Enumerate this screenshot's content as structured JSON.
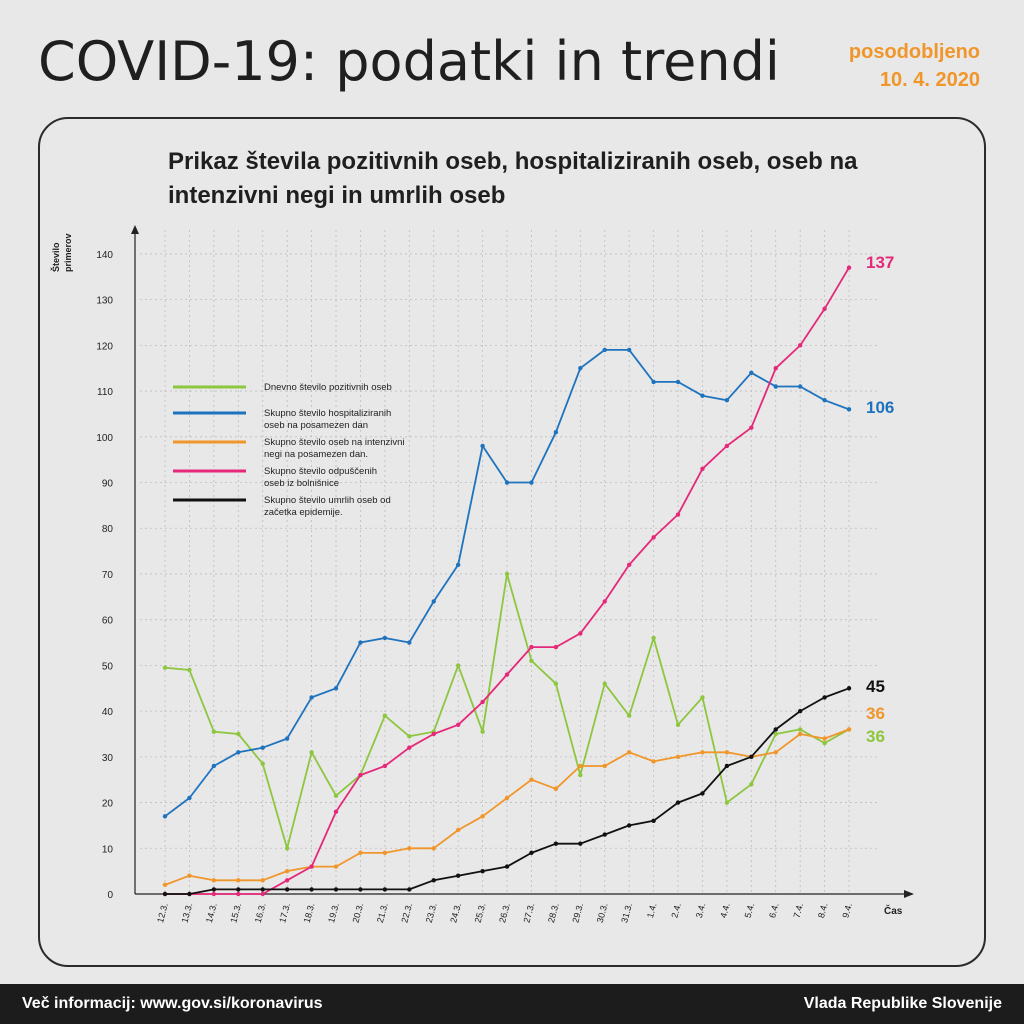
{
  "header": {
    "title": "COVID-19: podatki in trendi",
    "updated_line1": "posodobljeno",
    "updated_line2": "10. 4. 2020"
  },
  "footer": {
    "left": "Več informacij: www.gov.si/koronavirus",
    "right": "Vlada Republike Slovenije"
  },
  "colors": {
    "green": "#8dc63f",
    "blue": "#1e73be",
    "orange": "#f0962b",
    "pink": "#e6287a",
    "black": "#111111"
  },
  "chart_data": {
    "type": "line",
    "title": "Prikaz števila pozitivnih oseb, hospitaliziranih oseb, oseb na intenzivni negi in umrlih oseb",
    "ylabel_line1": "Število",
    "ylabel_line2": "primerov",
    "xlabel": "Čas",
    "ylim": [
      0,
      140
    ],
    "yticks": [
      0,
      10,
      20,
      30,
      40,
      50,
      60,
      70,
      80,
      90,
      100,
      110,
      120,
      130,
      140
    ],
    "grid": true,
    "legend_position": "upper-left",
    "categories": [
      "12.3.",
      "13.3.",
      "14.3.",
      "15.3.",
      "16.3.",
      "17.3.",
      "18.3.",
      "19.3.",
      "20.3.",
      "21.3.",
      "22.3.",
      "23.3.",
      "24.3.",
      "25.3.",
      "26.3.",
      "27.3.",
      "28.3.",
      "29.3.",
      "30.3.",
      "31.3.",
      "1.4.",
      "2.4.",
      "3.4.",
      "4.4.",
      "5.4.",
      "6.4.",
      "7.4.",
      "8.4.",
      "9.4."
    ],
    "series": [
      {
        "name": "Dnevno število pozitivnih oseb",
        "color": "#8dc63f",
        "end_label": "36",
        "values": [
          49.5,
          49,
          35.5,
          35,
          28.5,
          10,
          31,
          21.5,
          26,
          39,
          34.5,
          35.5,
          50,
          35.5,
          70,
          51,
          46,
          26,
          46,
          39,
          56,
          37,
          43,
          20,
          24,
          35,
          36,
          33,
          36
        ]
      },
      {
        "name": "Skupno število hospitaliziranih oseb na posamezen dan",
        "color": "#1e73be",
        "end_label": "106",
        "values": [
          17,
          21,
          28,
          31,
          32,
          34,
          43,
          45,
          55,
          56,
          55,
          64,
          72,
          98,
          90,
          90,
          101,
          115,
          119,
          119,
          112,
          112,
          109,
          108,
          114,
          111,
          111,
          108,
          106
        ]
      },
      {
        "name": "Skupno število oseb na intenzivni negi na posamezen dan.",
        "color": "#f0962b",
        "end_label": "36",
        "values": [
          2,
          4,
          3,
          3,
          3,
          5,
          6,
          6,
          9,
          9,
          10,
          10,
          14,
          17,
          21,
          25,
          23,
          28,
          28,
          31,
          29,
          30,
          31,
          31,
          30,
          31,
          35,
          34,
          36
        ]
      },
      {
        "name": "Skupno število odpuščenih oseb iz bolnišnice",
        "color": "#e6287a",
        "end_label": "137",
        "values": [
          0,
          0,
          0,
          0,
          0,
          3,
          6,
          18,
          26,
          28,
          32,
          35,
          37,
          42,
          48,
          54,
          54,
          57,
          64,
          72,
          78,
          83,
          93,
          98,
          102,
          115,
          120,
          128,
          137
        ]
      },
      {
        "name": "Skupno število umrlih oseb od začetka epidemije.",
        "color": "#111111",
        "end_label": "45",
        "values": [
          0,
          0,
          1,
          1,
          1,
          1,
          1,
          1,
          1,
          1,
          1,
          3,
          4,
          5,
          6,
          9,
          11,
          11,
          13,
          15,
          16,
          20,
          22,
          28,
          30,
          36,
          40,
          43,
          45
        ]
      }
    ],
    "legend_lines": [
      [
        "Dnevno število pozitivnih oseb"
      ],
      [
        "Skupno število hospitaliziranih",
        "oseb na posamezen dan"
      ],
      [
        "Skupno število oseb na intenzivni",
        "negi na posamezen dan."
      ],
      [
        "Skupno število odpuščenih",
        "oseb iz bolnišnice"
      ],
      [
        "Skupno število umrlih oseb od",
        "začetka epidemije."
      ]
    ]
  }
}
